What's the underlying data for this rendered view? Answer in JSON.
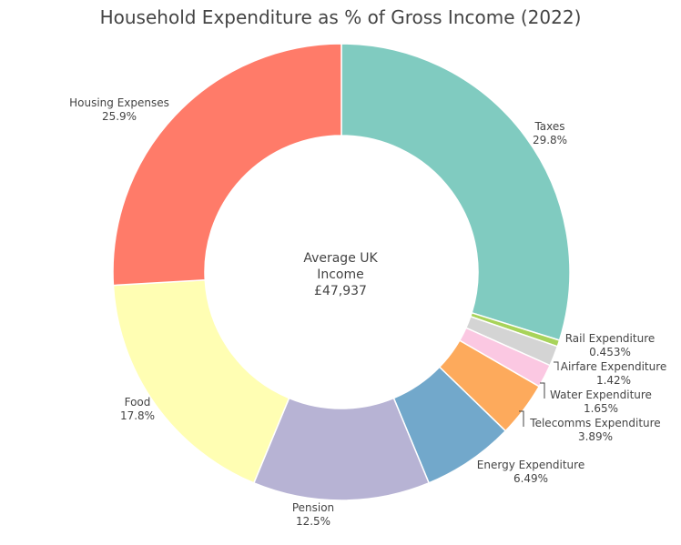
{
  "chart_data": {
    "type": "pie",
    "hole": true,
    "title": "Household Expenditure as % of Gross Income (2022)",
    "center_text": [
      "Average UK",
      "Income",
      "£47,937"
    ],
    "slices": [
      {
        "label": "Taxes",
        "value": 29.8,
        "percent_text": "29.8%",
        "color": "#80CBC0"
      },
      {
        "label": "Rail Expenditure",
        "value": 0.453,
        "percent_text": "0.453%",
        "color": "#A8D35A"
      },
      {
        "label": "Airfare Expenditure",
        "value": 1.42,
        "percent_text": "1.42%",
        "color": "#D4D4D4"
      },
      {
        "label": "Water Expenditure",
        "value": 1.65,
        "percent_text": "1.65%",
        "color": "#FBC8E2"
      },
      {
        "label": "Telecomms Expenditure",
        "value": 3.89,
        "percent_text": "3.89%",
        "color": "#FDAA5C"
      },
      {
        "label": "Energy Expenditure",
        "value": 6.49,
        "percent_text": "6.49%",
        "color": "#72A8CB"
      },
      {
        "label": "Pension",
        "value": 12.5,
        "percent_text": "12.5%",
        "color": "#B7B3D4"
      },
      {
        "label": "Food",
        "value": 17.8,
        "percent_text": "17.8%",
        "color": "#FFFEB3"
      },
      {
        "label": "Housing Expenses",
        "value": 25.9,
        "percent_text": "25.9%",
        "color": "#FF7B69"
      }
    ]
  }
}
